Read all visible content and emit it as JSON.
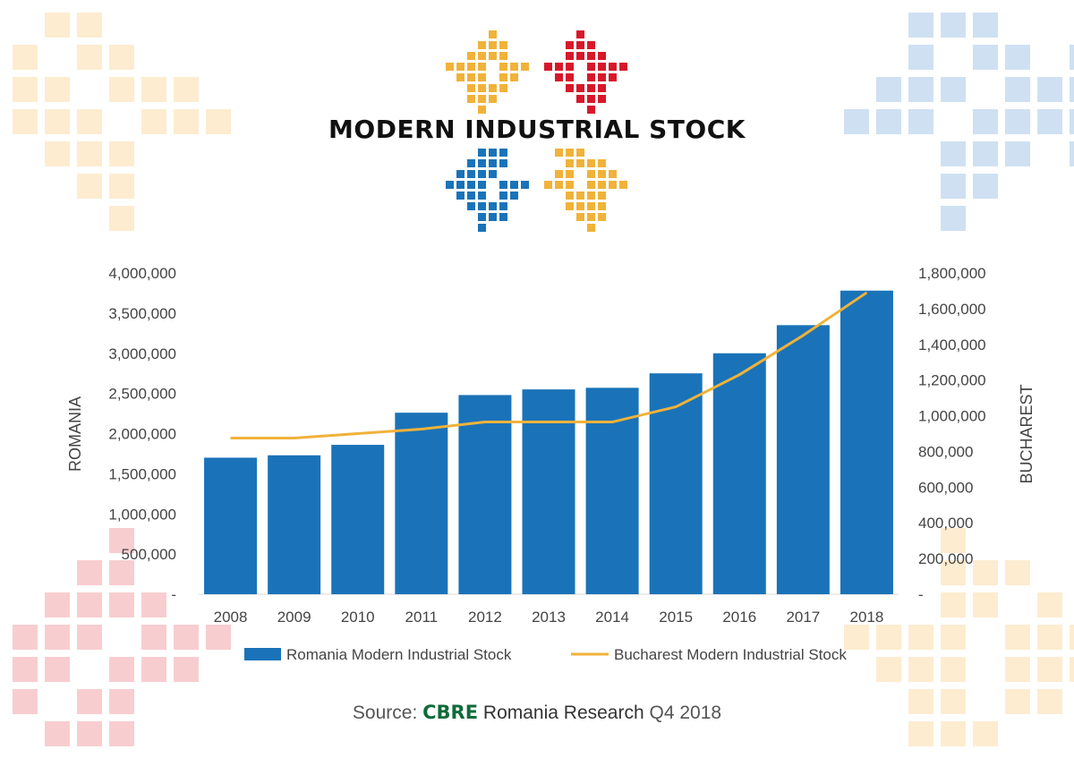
{
  "title": "MODERN INDUSTRIAL STOCK",
  "source": {
    "prefix": "Source:",
    "brand": "CBRE",
    "research": "Romania Research",
    "period": "Q4 2018"
  },
  "colors": {
    "bar": "#1a73b8",
    "line": "#f0b23a",
    "red": "#d6182a",
    "yellow": "#f0b23a",
    "blue": "#1a73b8",
    "deco_yellow": "#fdecd0",
    "deco_blue": "#cfe0f2",
    "deco_red": "#f8cdd0"
  },
  "chart_data": {
    "type": "bar",
    "categories": [
      "2008",
      "2009",
      "2010",
      "2011",
      "2012",
      "2013",
      "2014",
      "2015",
      "2016",
      "2017",
      "2018"
    ],
    "series": [
      {
        "name": "Romania Modern Industrial Stock",
        "type": "bar",
        "axis": "left",
        "values": [
          1700000,
          1730000,
          1860000,
          2260000,
          2480000,
          2550000,
          2570000,
          2750000,
          3000000,
          3350000,
          3780000
        ]
      },
      {
        "name": "Bucharest Modern Industrial Stock",
        "type": "line",
        "axis": "right",
        "values": [
          875000,
          875000,
          900000,
          925000,
          965000,
          965000,
          965000,
          1050000,
          1230000,
          1450000,
          1690000
        ]
      }
    ],
    "left_axis": {
      "label": "ROMANIA",
      "range": [
        0,
        4000000
      ],
      "ticks": [
        0,
        500000,
        1000000,
        1500000,
        2000000,
        2500000,
        3000000,
        3500000,
        4000000
      ],
      "tick_labels": [
        "-",
        "500,000",
        "1,000,000",
        "1,500,000",
        "2,000,000",
        "2,500,000",
        "3,000,000",
        "3,500,000",
        "4,000,000"
      ]
    },
    "right_axis": {
      "label": "BUCHAREST",
      "range": [
        0,
        1800000
      ],
      "ticks": [
        0,
        200000,
        400000,
        600000,
        800000,
        1000000,
        1200000,
        1400000,
        1600000,
        1800000
      ],
      "tick_labels": [
        "-",
        "200,000",
        "400,000",
        "600,000",
        "800,000",
        "1,000,000",
        "1,200,000",
        "1,400,000",
        "1,600,000",
        "1,800,000"
      ]
    },
    "grid": false,
    "legend_position": "bottom"
  }
}
